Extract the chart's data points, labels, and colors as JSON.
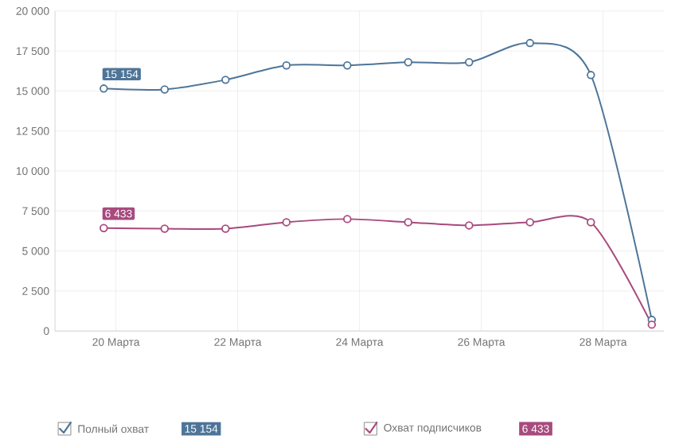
{
  "chart_data": {
    "type": "line",
    "x": [
      19.8,
      20.8,
      21.8,
      22.8,
      23.8,
      24.8,
      25.8,
      26.8,
      27.8,
      28.8
    ],
    "xlim": [
      19,
      29
    ],
    "xticks": [
      {
        "value": 20,
        "label": "20 Марта"
      },
      {
        "value": 22,
        "label": "22 Марта"
      },
      {
        "value": 24,
        "label": "24 Марта"
      },
      {
        "value": 26,
        "label": "26 Марта"
      },
      {
        "value": 28,
        "label": "28 Марта"
      }
    ],
    "ylim": [
      0,
      20000
    ],
    "yticks": [
      0,
      {
        "value": 2500,
        "label": "2 500"
      },
      {
        "value": 5000,
        "label": "5 000"
      },
      {
        "value": 7500,
        "label": "7 500"
      },
      {
        "value": 10000,
        "label": "10 000"
      },
      {
        "value": 12500,
        "label": "12 500"
      },
      {
        "value": 15000,
        "label": "15 000"
      },
      {
        "value": 17500,
        "label": "17 500"
      },
      {
        "value": 20000,
        "label": "20 000"
      }
    ],
    "grid": true,
    "marker": "circle",
    "line_style": "solid",
    "legend": "bottom",
    "series": [
      {
        "name": "Полный охват",
        "color": "#4e7598",
        "values": [
          15154,
          15100,
          15700,
          16600,
          16600,
          16800,
          16800,
          18000,
          16000,
          700
        ],
        "value_labels": [
          "15 154",
          null,
          null,
          null,
          null,
          null,
          null,
          null,
          null,
          null
        ]
      },
      {
        "name": "Охват подписчиков",
        "color": "#a84a7e",
        "values": [
          6433,
          6400,
          6400,
          6800,
          7000,
          6800,
          6600,
          6800,
          6800,
          400
        ],
        "value_labels": [
          "6 433",
          null,
          null,
          null,
          null,
          null,
          null,
          null,
          null,
          null
        ]
      }
    ],
    "annotations": [
      "15 154",
      "6 433"
    ]
  }
}
